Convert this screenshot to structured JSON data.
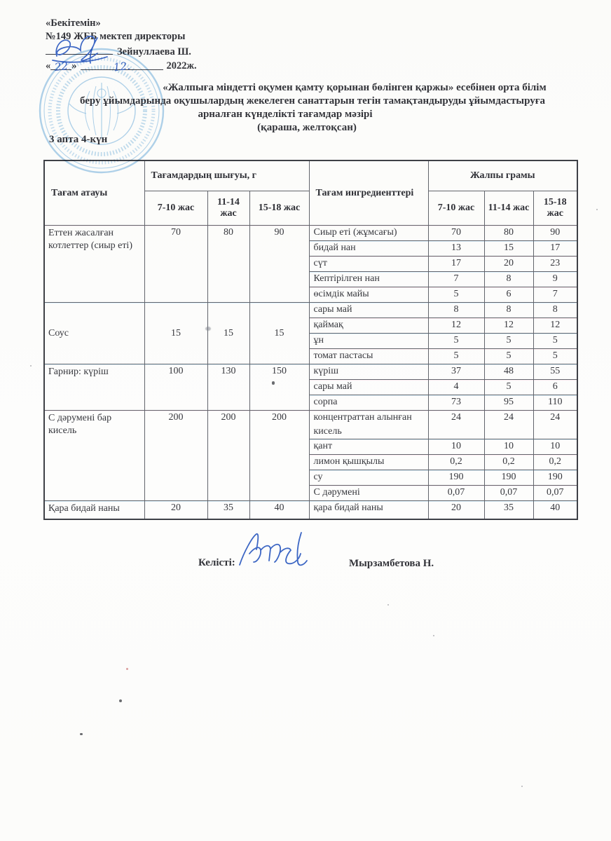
{
  "approval": {
    "line1": "«Бекітемін»",
    "line2": "№149 ЖББ мектеп директоры",
    "director_name": "Зейнуллаева Ш.",
    "quote_open": "«",
    "quote_close": "»",
    "day": "22",
    "month": "12.",
    "year": "2022ж."
  },
  "title": {
    "line1": "«Жалпыға міндетті оқумен қамту қорынан бөлінген қаржы» есебінен орта білім",
    "line2": "беру ұйымдарында оқушылардың жекелеген санаттарын тегін тамақтандыруды ұйымдастыруға",
    "line3": "арналған күнделікті тағамдар мәзірі",
    "line4": "(қараша, желтоқсан)"
  },
  "week_day": "3 апта 4-күн",
  "table": {
    "columns": {
      "dish": "Тағам атауы",
      "output_group": "Тағамдардың шығуы, г",
      "ingredients": "Тағам ингредиенттері",
      "grams_group": "Жалпы грамы",
      "ages": [
        "7-10 жас",
        "11-14 жас",
        "15-18 жас"
      ]
    },
    "groups": [
      {
        "dish": "Еттен жасалған котлеттер (сиыр еті)",
        "out": [
          "70",
          "80",
          "90"
        ],
        "ingredients": [
          {
            "name": "Сиыр еті (жұмсағы)",
            "g": [
              "70",
              "80",
              "90"
            ]
          },
          {
            "name": "бидай нан",
            "g": [
              "13",
              "15",
              "17"
            ]
          },
          {
            "name": "сүт",
            "g": [
              "17",
              "20",
              "23"
            ]
          },
          {
            "name": "Кептірілген нан",
            "g": [
              "7",
              "8",
              "9"
            ]
          },
          {
            "name": "өсімдік майы",
            "g": [
              "5",
              "6",
              "7"
            ]
          }
        ]
      },
      {
        "dish": "Соус",
        "out": [
          "15",
          "15",
          "15"
        ],
        "valign": "middle",
        "ingredients": [
          {
            "name": "сары май",
            "g": [
              "8",
              "8",
              "8"
            ]
          },
          {
            "name": "қаймақ",
            "g": [
              "12",
              "12",
              "12"
            ]
          },
          {
            "name": "ұн",
            "g": [
              "5",
              "5",
              "5"
            ]
          },
          {
            "name": "томат пастасы",
            "g": [
              "5",
              "5",
              "5"
            ]
          }
        ]
      },
      {
        "dish": "Гарнир: күріш",
        "out": [
          "100",
          "130",
          "150"
        ],
        "ingredients": [
          {
            "name": "күріш",
            "g": [
              "37",
              "48",
              "55"
            ]
          },
          {
            "name": "сары май",
            "g": [
              "4",
              "5",
              "6"
            ]
          },
          {
            "name": "сорпа",
            "g": [
              "73",
              "95",
              "110"
            ]
          }
        ]
      },
      {
        "dish": "С дәрумені бар кисель",
        "out": [
          "200",
          "200",
          "200"
        ],
        "ingredients": [
          {
            "name": "концентраттан алынған кисель",
            "g": [
              "24",
              "24",
              "24"
            ]
          },
          {
            "name": "қант",
            "g": [
              "10",
              "10",
              "10"
            ]
          },
          {
            "name": "лимон қышқылы",
            "g": [
              "0,2",
              "0,2",
              "0,2"
            ]
          },
          {
            "name": "су",
            "g": [
              "190",
              "190",
              "190"
            ]
          },
          {
            "name": "С дәрумені",
            "g": [
              "0,07",
              "0,07",
              "0,07"
            ]
          }
        ]
      },
      {
        "dish": "Қара бидай наны",
        "out": [
          "20",
          "35",
          "40"
        ],
        "ingredients": [
          {
            "name": "қара бидай наны",
            "g": [
              "20",
              "35",
              "40"
            ]
          }
        ]
      }
    ]
  },
  "footer": {
    "agreed_label": "Келісті:",
    "agreed_name": "Мырзамбетова Н."
  },
  "colors": {
    "ink": "#33343a",
    "pen_blue": "#3c66c4",
    "stamp_blue": "#5ea6da",
    "border_dark": "#3e4046",
    "border_light": "#62656c",
    "paper": "#fbfbf9"
  }
}
